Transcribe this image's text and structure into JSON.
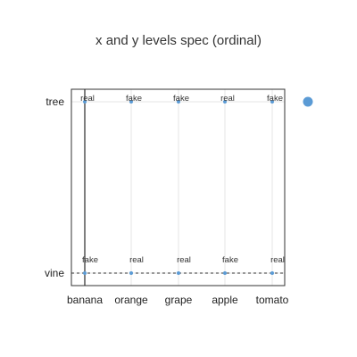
{
  "chart_data": {
    "type": "scatter",
    "title": "x and y levels spec (ordinal)",
    "xlabel": "",
    "ylabel": "",
    "x_categories": [
      "banana",
      "orange",
      "grape",
      "apple",
      "tomato"
    ],
    "y_categories": [
      "vine",
      "tree"
    ],
    "grid": true,
    "points": [
      {
        "x": "banana",
        "y": "tree",
        "label": "real"
      },
      {
        "x": "orange",
        "y": "tree",
        "label": "fake"
      },
      {
        "x": "grape",
        "y": "tree",
        "label": "fake"
      },
      {
        "x": "apple",
        "y": "tree",
        "label": "real"
      },
      {
        "x": "tomato",
        "y": "tree",
        "label": "fake"
      },
      {
        "x": "banana",
        "y": "vine",
        "label": "fake"
      },
      {
        "x": "orange",
        "y": "vine",
        "label": "real"
      },
      {
        "x": "grape",
        "y": "vine",
        "label": "real"
      },
      {
        "x": "apple",
        "y": "vine",
        "label": "fake"
      },
      {
        "x": "tomato",
        "y": "vine",
        "label": "real"
      }
    ],
    "reference_lines": [
      {
        "axis": "x",
        "value": "banana",
        "style": "solid"
      },
      {
        "axis": "y",
        "value": "vine",
        "style": "dashed"
      }
    ],
    "legend": {
      "placement": "right",
      "marker_color": "#5b9bd5"
    },
    "colors": {
      "point": "#5b9bd5",
      "frame": "#333333",
      "grid": "#e6e6e6"
    }
  }
}
